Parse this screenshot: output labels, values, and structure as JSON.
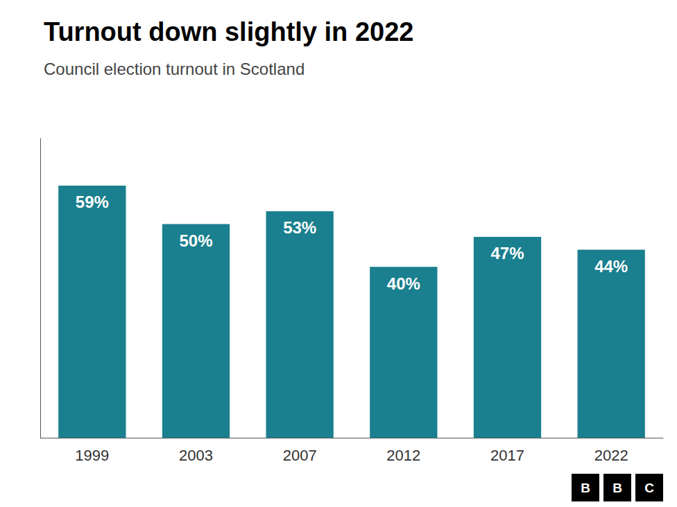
{
  "chart_data": {
    "type": "bar",
    "title": "Turnout down slightly in 2022",
    "subtitle": "Council election turnout in Scotland",
    "categories": [
      "1999",
      "2003",
      "2007",
      "2012",
      "2017",
      "2022"
    ],
    "values": [
      59,
      50,
      53,
      40,
      47,
      44
    ],
    "value_labels": [
      "59%",
      "50%",
      "53%",
      "40%",
      "47%",
      "44%"
    ],
    "data_labels": true,
    "color": "#1a7f8e",
    "ylim": [
      0,
      70
    ],
    "tick_labels": "x",
    "grid": false,
    "annotations": [
      "B",
      "B",
      "C"
    ]
  }
}
